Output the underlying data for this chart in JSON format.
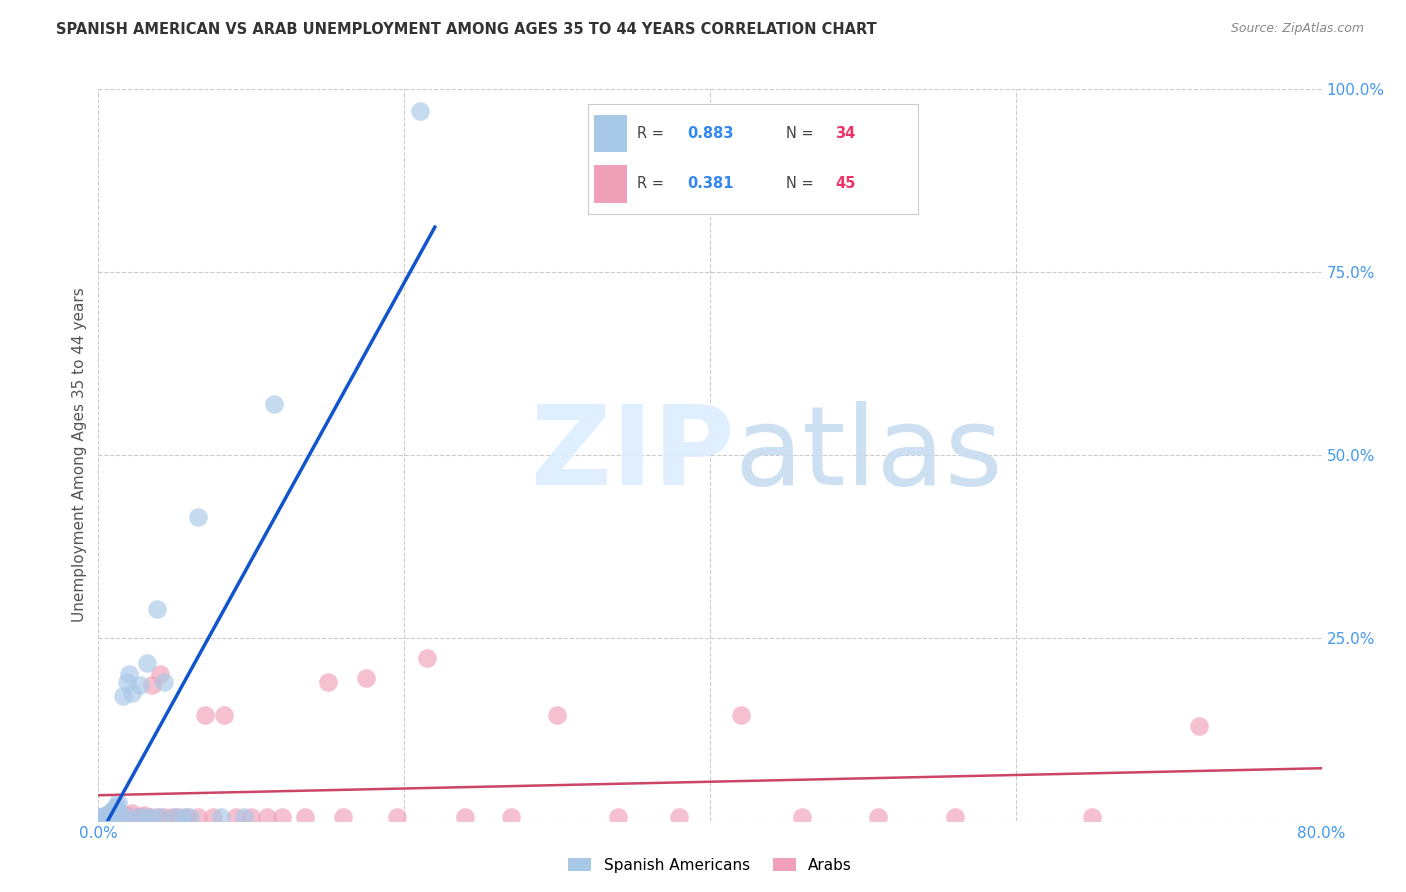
{
  "title": "SPANISH AMERICAN VS ARAB UNEMPLOYMENT AMONG AGES 35 TO 44 YEARS CORRELATION CHART",
  "source": "Source: ZipAtlas.com",
  "ylabel": "Unemployment Among Ages 35 to 44 years",
  "xlim": [
    0.0,
    0.8
  ],
  "ylim": [
    0.0,
    1.0
  ],
  "xticks": [
    0.0,
    0.2,
    0.4,
    0.6,
    0.8
  ],
  "yticks": [
    0.0,
    0.25,
    0.5,
    0.75,
    1.0
  ],
  "spanish_color": "#a8c8e8",
  "arab_color": "#f0a0b8",
  "trendline_spanish_color": "#1155cc",
  "trendline_arab_color": "#cc4466",
  "spanish_x": [
    0.002,
    0.003,
    0.004,
    0.005,
    0.006,
    0.007,
    0.008,
    0.009,
    0.01,
    0.011,
    0.012,
    0.013,
    0.015,
    0.016,
    0.018,
    0.019,
    0.02,
    0.022,
    0.025,
    0.027,
    0.03,
    0.032,
    0.035,
    0.038,
    0.04,
    0.043,
    0.05,
    0.055,
    0.06,
    0.065,
    0.08,
    0.095,
    0.115,
    0.21
  ],
  "spanish_y": [
    0.005,
    0.006,
    0.005,
    0.007,
    0.008,
    0.01,
    0.012,
    0.005,
    0.015,
    0.018,
    0.02,
    0.025,
    0.005,
    0.17,
    0.005,
    0.19,
    0.2,
    0.175,
    0.005,
    0.185,
    0.005,
    0.215,
    0.005,
    0.29,
    0.005,
    0.19,
    0.005,
    0.005,
    0.005,
    0.415,
    0.005,
    0.005,
    0.57,
    0.97
  ],
  "arab_x": [
    0.002,
    0.005,
    0.008,
    0.01,
    0.012,
    0.015,
    0.018,
    0.02,
    0.022,
    0.025,
    0.028,
    0.03,
    0.033,
    0.035,
    0.038,
    0.04,
    0.043,
    0.048,
    0.052,
    0.058,
    0.065,
    0.07,
    0.075,
    0.082,
    0.09,
    0.1,
    0.11,
    0.12,
    0.135,
    0.15,
    0.16,
    0.175,
    0.195,
    0.215,
    0.24,
    0.27,
    0.3,
    0.34,
    0.38,
    0.42,
    0.46,
    0.51,
    0.56,
    0.65,
    0.72
  ],
  "arab_y": [
    0.005,
    0.005,
    0.005,
    0.008,
    0.005,
    0.005,
    0.008,
    0.005,
    0.01,
    0.005,
    0.005,
    0.008,
    0.005,
    0.185,
    0.005,
    0.2,
    0.005,
    0.005,
    0.005,
    0.005,
    0.005,
    0.145,
    0.005,
    0.145,
    0.005,
    0.005,
    0.005,
    0.005,
    0.005,
    0.19,
    0.005,
    0.195,
    0.005,
    0.223,
    0.005,
    0.005,
    0.145,
    0.005,
    0.005,
    0.145,
    0.005,
    0.005,
    0.005,
    0.005,
    0.13
  ]
}
